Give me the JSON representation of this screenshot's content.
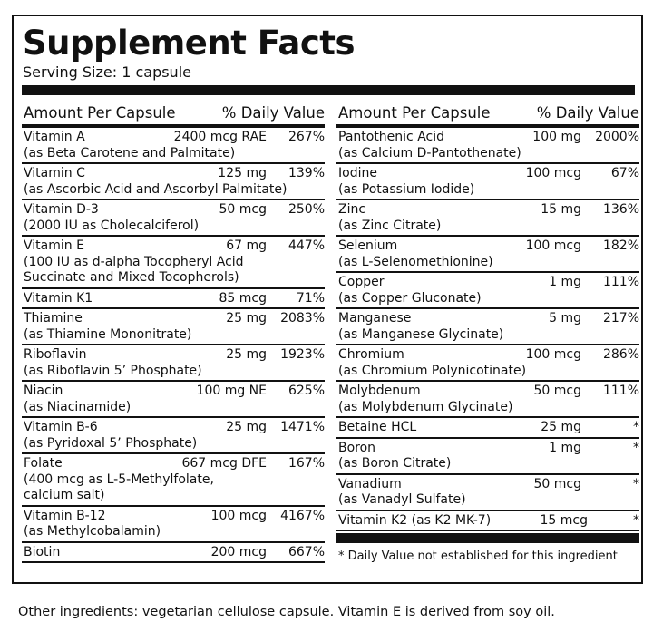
{
  "title": "Supplement Facts",
  "serving_size": "Serving Size: 1 capsule",
  "header": {
    "amount_label": "Amount Per Capsule",
    "dv_label": "% Daily Value"
  },
  "left": [
    {
      "name": "Vitamin A",
      "amount": "2400 mcg RAE",
      "dv": "267%",
      "sub": [
        "(as Beta Carotene and Palmitate)"
      ]
    },
    {
      "name": "Vitamin C",
      "amount": "125 mg",
      "dv": "139%",
      "sub": [
        "(as Ascorbic Acid and Ascorbyl Palmitate)"
      ]
    },
    {
      "name": "Vitamin D-3",
      "amount": "50 mcg",
      "dv": "250%",
      "sub": [
        "(2000 IU as Cholecalciferol)"
      ]
    },
    {
      "name": "Vitamin E",
      "amount": "67 mg",
      "dv": "447%",
      "sub": [
        "(100 IU as d-alpha Tocopheryl Acid",
        "Succinate and Mixed Tocopherols)"
      ]
    },
    {
      "name": "Vitamin K1",
      "amount": "85 mcg",
      "dv": "71%",
      "sub": []
    },
    {
      "name": "Thiamine",
      "amount": "25 mg",
      "dv": "2083%",
      "sub": [
        "(as Thiamine Mononitrate)"
      ]
    },
    {
      "name": "Riboflavin",
      "amount": "25 mg",
      "dv": "1923%",
      "sub": [
        "(as Riboflavin 5’ Phosphate)"
      ]
    },
    {
      "name": "Niacin",
      "amount": "100 mg NE",
      "dv": "625%",
      "sub": [
        "(as Niacinamide)"
      ]
    },
    {
      "name": "Vitamin B-6",
      "amount": "25 mg",
      "dv": "1471%",
      "sub": [
        "(as Pyridoxal 5’ Phosphate)"
      ]
    },
    {
      "name": "Folate",
      "amount": "667 mcg DFE",
      "dv": "167%",
      "sub": [
        "(400 mcg as L-5-Methylfolate,",
        "calcium salt)"
      ]
    },
    {
      "name": "Vitamin B-12",
      "amount": "100 mcg",
      "dv": "4167%",
      "sub": [
        "(as Methylcobalamin)"
      ]
    },
    {
      "name": "Biotin",
      "amount": "200 mcg",
      "dv": "667%",
      "sub": []
    }
  ],
  "right": [
    {
      "name": "Pantothenic Acid",
      "amount": "100 mg",
      "dv": "2000%",
      "sub": [
        "(as Calcium D-Pantothenate)"
      ]
    },
    {
      "name": "Iodine",
      "amount": "100 mcg",
      "dv": "67%",
      "sub": [
        "(as Potassium Iodide)"
      ]
    },
    {
      "name": "Zinc",
      "amount": "15 mg",
      "dv": "136%",
      "sub": [
        "(as Zinc Citrate)"
      ]
    },
    {
      "name": "Selenium",
      "amount": "100 mcg",
      "dv": "182%",
      "sub": [
        "(as L-Selenomethionine)"
      ]
    },
    {
      "name": "Copper",
      "amount": "1 mg",
      "dv": "111%",
      "sub": [
        "(as Copper Gluconate)"
      ]
    },
    {
      "name": "Manganese",
      "amount": "5 mg",
      "dv": "217%",
      "sub": [
        "(as Manganese Glycinate)"
      ]
    },
    {
      "name": "Chromium",
      "amount": "100 mcg",
      "dv": "286%",
      "sub": [
        "(as Chromium Polynicotinate)"
      ]
    },
    {
      "name": "Molybdenum",
      "amount": "50 mcg",
      "dv": "111%",
      "sub": [
        "(as Molybdenum Glycinate)"
      ]
    },
    {
      "name": "Betaine HCL",
      "amount": "25 mg",
      "dv": "*",
      "sub": []
    },
    {
      "name": "Boron",
      "amount": "1 mg",
      "dv": "*",
      "sub": [
        "(as Boron Citrate)"
      ]
    },
    {
      "name": "Vanadium",
      "amount": "50 mcg",
      "dv": "*",
      "sub": [
        "(as Vanadyl Sulfate)"
      ]
    },
    {
      "name": "Vitamin K2 (as K2 MK-7)",
      "amount": "15 mcg",
      "dv": "*",
      "sub": []
    }
  ],
  "footnote": "* Daily Value not established for this ingredient",
  "other_ingredients": "Other ingredients: vegetarian cellulose capsule. Vitamin E is derived from soy oil."
}
